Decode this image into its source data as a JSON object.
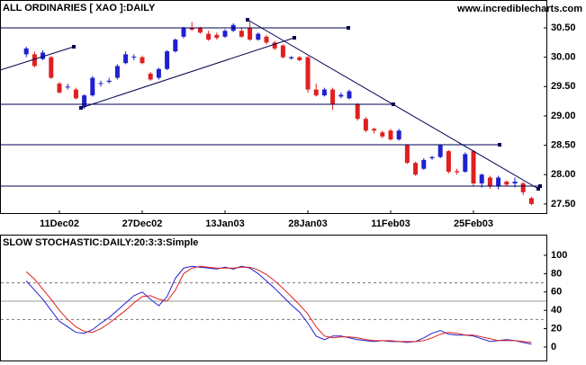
{
  "chart_data": [
    {
      "type": "candlestick",
      "title": "ALL ORDINARIES [ XAO ]:DAILY",
      "source": "www.incrediblecharts.com",
      "up_color": "#2020d0",
      "down_color": "#e02020",
      "categories": [
        null,
        null,
        null,
        null,
        null,
        null,
        null,
        "11Dec02",
        null,
        null,
        null,
        null,
        null,
        null,
        null,
        null,
        null,
        "27Dec02",
        null,
        null,
        null,
        null,
        null,
        null,
        null,
        null,
        null,
        "13Jan03",
        null,
        null,
        null,
        null,
        null,
        null,
        null,
        null,
        null,
        "28Jan03",
        null,
        null,
        null,
        null,
        null,
        null,
        null,
        null,
        null,
        "11Feb03",
        null,
        null,
        null,
        null,
        null,
        null,
        null,
        null,
        null,
        "25Feb03",
        null,
        null,
        null,
        null,
        null,
        null,
        null
      ],
      "open": [
        null,
        null,
        null,
        30.05,
        30.05,
        29.97,
        30.0,
        29.55,
        29.5,
        29.45,
        29.15,
        29.35,
        29.55,
        29.58,
        29.65,
        29.9,
        30.0,
        30.0,
        29.72,
        29.65,
        29.8,
        30.1,
        30.35,
        30.5,
        30.5,
        30.4,
        30.38,
        30.35,
        30.45,
        30.45,
        30.5,
        30.3,
        30.35,
        30.25,
        30.2,
        29.98,
        30.0,
        30.0,
        29.45,
        29.35,
        29.45,
        29.33,
        29.3,
        29.2,
        28.95,
        28.78,
        28.72,
        28.75,
        28.6,
        28.5,
        28.2,
        28.1,
        28.28,
        28.3,
        28.4,
        28.06,
        28.05,
        28.4,
        27.85,
        27.95,
        27.8,
        27.88,
        27.85,
        27.85,
        27.6
      ],
      "high": [
        null,
        null,
        null,
        30.18,
        30.1,
        30.12,
        30.02,
        29.58,
        29.55,
        29.48,
        29.37,
        29.68,
        29.6,
        29.65,
        29.88,
        30.1,
        30.05,
        30.03,
        29.75,
        29.82,
        30.12,
        30.32,
        30.52,
        30.6,
        30.52,
        30.45,
        30.42,
        30.48,
        30.58,
        30.5,
        30.6,
        30.42,
        30.38,
        30.28,
        30.22,
        30.02,
        30.02,
        30.02,
        29.55,
        29.48,
        29.48,
        29.4,
        29.45,
        29.22,
        28.98,
        28.8,
        28.75,
        28.78,
        28.78,
        28.52,
        28.22,
        28.28,
        28.32,
        28.52,
        28.42,
        28.1,
        28.38,
        28.42,
        28.02,
        27.98,
        27.98,
        27.9,
        27.95,
        27.88,
        27.62
      ],
      "low": [
        null,
        null,
        null,
        30.0,
        29.83,
        29.95,
        29.63,
        29.38,
        29.45,
        29.28,
        29.12,
        29.33,
        29.5,
        29.55,
        29.62,
        29.88,
        29.95,
        29.88,
        29.6,
        29.62,
        29.78,
        30.08,
        30.32,
        30.45,
        30.4,
        30.28,
        30.3,
        30.33,
        30.43,
        30.33,
        30.28,
        30.28,
        30.22,
        30.12,
        29.98,
        29.96,
        29.93,
        29.4,
        29.33,
        29.33,
        29.1,
        29.3,
        29.28,
        28.92,
        28.72,
        28.7,
        28.62,
        28.58,
        28.58,
        28.18,
        27.98,
        28.08,
        28.25,
        28.28,
        28.02,
        28.0,
        28.03,
        27.8,
        27.78,
        27.76,
        27.75,
        27.8,
        27.78,
        27.65,
        27.48
      ],
      "close": [
        null,
        null,
        null,
        30.15,
        29.85,
        30.08,
        29.65,
        29.4,
        29.5,
        29.3,
        29.35,
        29.65,
        29.56,
        29.6,
        29.85,
        30.05,
        30.01,
        29.9,
        29.62,
        29.8,
        30.1,
        30.3,
        30.5,
        30.47,
        30.42,
        30.3,
        30.33,
        30.45,
        30.55,
        30.35,
        30.3,
        30.4,
        30.25,
        30.15,
        30.0,
        30.0,
        29.95,
        29.45,
        29.35,
        29.45,
        29.2,
        29.36,
        29.42,
        28.95,
        28.75,
        28.75,
        28.65,
        28.6,
        28.75,
        28.2,
        28.0,
        28.25,
        28.3,
        28.5,
        28.05,
        28.04,
        28.35,
        27.85,
        28.0,
        27.8,
        27.95,
        27.83,
        27.88,
        27.7,
        27.5
      ],
      "ylim": [
        27.33,
        30.975
      ],
      "yticks": [
        {
          "value": 30.5,
          "label": "30.50"
        },
        {
          "value": 30.0,
          "label": "30.00"
        },
        {
          "value": 29.5,
          "label": "29.50"
        },
        {
          "value": 29.0,
          "label": "29.00"
        },
        {
          "value": 28.5,
          "label": "28.50"
        },
        {
          "value": 28.0,
          "label": "28.00"
        },
        {
          "value": 27.5,
          "label": "27.50"
        }
      ]
    },
    {
      "type": "line",
      "title": "SLOW STOCHASTIC:DAILY:20:3:3:Simple",
      "series": [
        {
          "color": "#2020d0",
          "values": [
            null,
            null,
            null,
            72,
            62,
            52,
            40,
            28,
            22,
            16,
            15,
            19,
            26,
            32,
            40,
            48,
            56,
            60,
            52,
            45,
            55,
            75,
            86,
            88,
            87,
            86,
            85,
            87,
            85,
            88,
            86,
            80,
            72,
            64,
            55,
            46,
            38,
            26,
            12,
            8,
            12,
            12,
            10,
            8,
            7,
            6,
            7,
            6,
            6,
            5,
            6,
            10,
            15,
            18,
            14,
            13,
            13,
            12,
            9,
            6,
            7,
            8,
            7,
            5,
            3
          ]
        },
        {
          "color": "#e02020",
          "values": [
            null,
            null,
            null,
            82,
            74,
            63,
            52,
            40,
            30,
            22,
            17,
            16,
            20,
            26,
            33,
            40,
            48,
            55,
            56,
            52,
            50,
            62,
            80,
            86,
            88,
            87,
            86,
            86,
            86,
            87,
            87,
            84,
            79,
            72,
            64,
            55,
            46,
            36,
            22,
            12,
            10,
            11,
            11,
            10,
            8,
            7,
            7,
            7,
            6,
            6,
            6,
            7,
            10,
            14,
            16,
            15,
            13,
            13,
            11,
            9,
            7,
            7,
            7,
            6,
            5
          ]
        }
      ],
      "dashed_levels": [
        70,
        30
      ],
      "solid_levels": [
        50
      ],
      "ylim": [
        -14.7,
        122.5
      ],
      "yticks": [
        100,
        80,
        60,
        40,
        20,
        0
      ]
    }
  ]
}
